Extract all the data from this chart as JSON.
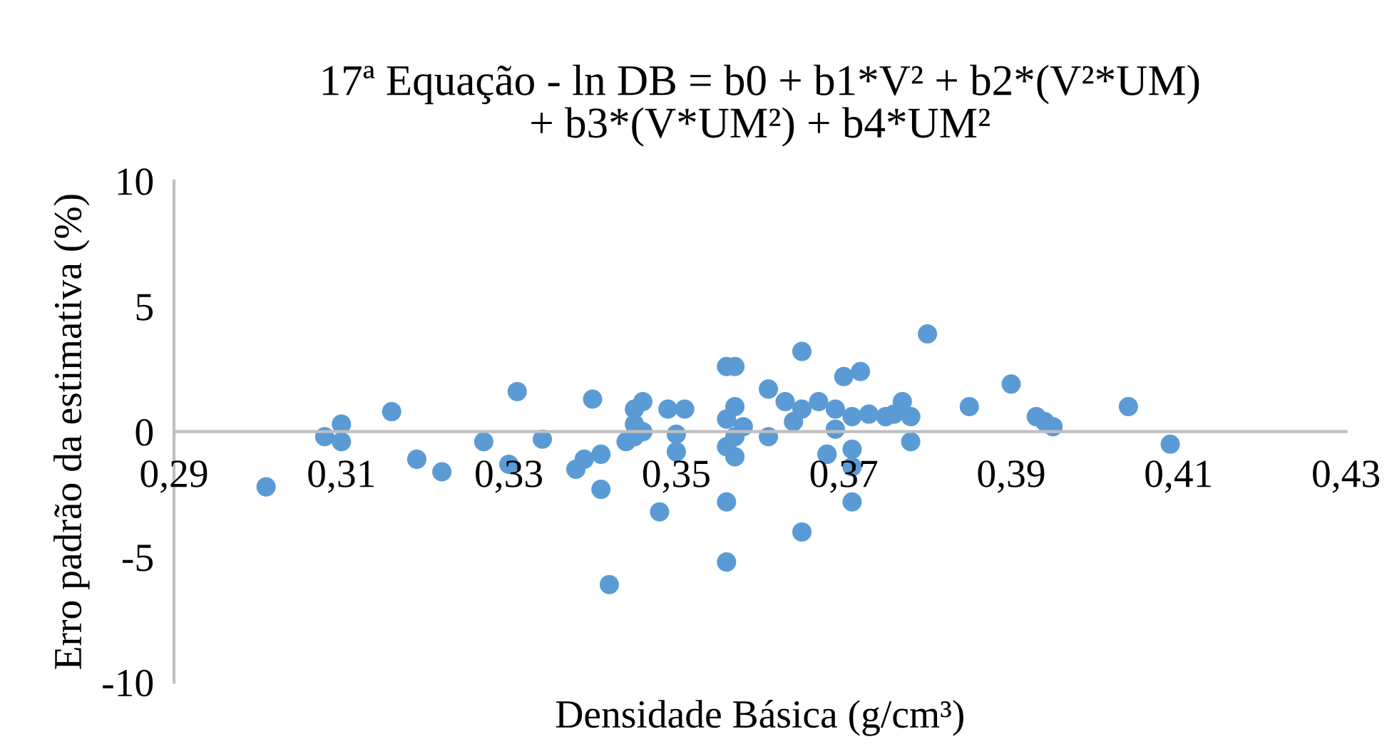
{
  "chart_data": {
    "type": "scatter",
    "title": "17ª Equação - ln DB = b0 + b1*V² + b2*(V²*UM)\n+ b3*(V*UM²) + b4*UM²",
    "xlabel": "Densidade Básica (g/cm³)",
    "ylabel": "Erro padrão da estimativa (%)",
    "xlim": [
      0.29,
      0.43
    ],
    "xticks": [
      {
        "value": 0.29,
        "label": "0,29"
      },
      {
        "value": 0.31,
        "label": "0,31"
      },
      {
        "value": 0.33,
        "label": "0,33"
      },
      {
        "value": 0.35,
        "label": "0,35"
      },
      {
        "value": 0.37,
        "label": "0,37"
      },
      {
        "value": 0.39,
        "label": "0,39"
      },
      {
        "value": 0.41,
        "label": "0,41"
      },
      {
        "value": 0.43,
        "label": "0,43"
      }
    ],
    "ylim": [
      -10,
      10
    ],
    "yticks": [
      -10,
      -5,
      0,
      5,
      10
    ],
    "grid": false,
    "marker": "circle",
    "series": [
      {
        "color": "#5b9bd5",
        "x": [
          0.301,
          0.308,
          0.31,
          0.31,
          0.316,
          0.319,
          0.322,
          0.327,
          0.33,
          0.331,
          0.334,
          0.338,
          0.339,
          0.341,
          0.34,
          0.341,
          0.342,
          0.344,
          0.345,
          0.345,
          0.346,
          0.346,
          0.345,
          0.348,
          0.349,
          0.35,
          0.35,
          0.351,
          0.356,
          0.357,
          0.356,
          0.357,
          0.358,
          0.357,
          0.356,
          0.357,
          0.356,
          0.356,
          0.361,
          0.361,
          0.363,
          0.364,
          0.365,
          0.365,
          0.365,
          0.367,
          0.368,
          0.368,
          0.369,
          0.369,
          0.37,
          0.371,
          0.371,
          0.371,
          0.371,
          0.372,
          0.373,
          0.375,
          0.377,
          0.376,
          0.378,
          0.378,
          0.38,
          0.385,
          0.39,
          0.393,
          0.394,
          0.395,
          0.404,
          0.409
        ],
        "values": [
          -2.2,
          -0.2,
          0.3,
          -0.4,
          0.8,
          -1.1,
          -1.6,
          -0.4,
          -1.3,
          1.6,
          -0.3,
          -1.5,
          -1.1,
          -0.9,
          1.3,
          -2.3,
          -6.1,
          -0.4,
          0.9,
          0.3,
          1.2,
          0.0,
          -0.2,
          -3.2,
          0.9,
          -0.1,
          -0.8,
          0.9,
          2.6,
          2.6,
          0.5,
          1.0,
          0.2,
          -0.2,
          -0.6,
          -1.0,
          -2.8,
          -5.2,
          1.7,
          -0.2,
          1.2,
          0.4,
          3.2,
          0.9,
          -4.0,
          1.2,
          -0.9,
          -0.9,
          0.1,
          0.9,
          2.2,
          0.6,
          -0.7,
          -1.4,
          -2.8,
          2.4,
          0.7,
          0.6,
          1.2,
          0.7,
          0.6,
          -0.4,
          3.9,
          1.0,
          1.9,
          0.6,
          0.4,
          0.2,
          1.0,
          -0.5
        ]
      }
    ]
  }
}
